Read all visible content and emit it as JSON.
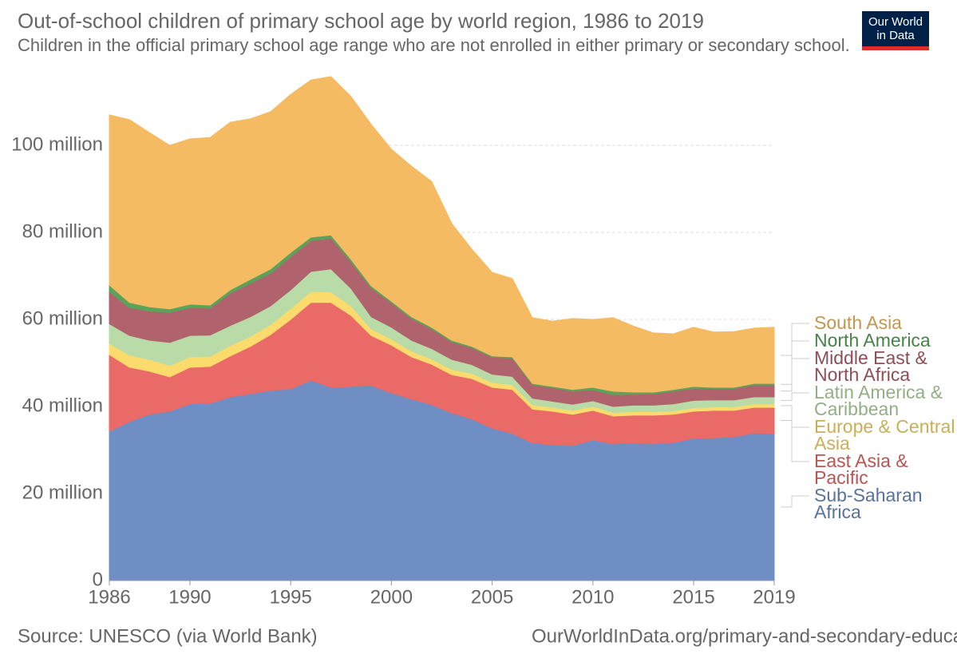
{
  "chart_data": {
    "type": "stacked_area",
    "title": "Out-of-school children of primary school age by world region, 1986 to 2019",
    "subtitle": "Children in the official primary school age range who are not enrolled in either primary or secondary school.",
    "source": "Source: UNESCO (via World Bank)",
    "url": "OurWorldInData.org/primary-and-secondary-education",
    "logo": [
      "Our World",
      "in Data"
    ],
    "x": [
      1986,
      1987,
      1988,
      1989,
      1990,
      1991,
      1992,
      1993,
      1994,
      1995,
      1996,
      1997,
      1998,
      1999,
      2000,
      2001,
      2002,
      2003,
      2004,
      2005,
      2006,
      2007,
      2008,
      2009,
      2010,
      2011,
      2012,
      2013,
      2014,
      2015,
      2016,
      2017,
      2018,
      2019
    ],
    "xlim": [
      1986,
      2019
    ],
    "xticks": [
      1986,
      1990,
      1995,
      2000,
      2005,
      2010,
      2015,
      2019
    ],
    "ylim": [
      0,
      120
    ],
    "yticks": [
      0,
      {
        "value": 20,
        "label": "20 million"
      },
      {
        "value": 40,
        "label": "40 million"
      },
      {
        "value": 60,
        "label": "60 million"
      },
      {
        "value": 80,
        "label": "80 million"
      },
      {
        "value": 100,
        "label": "100 million"
      }
    ],
    "grid": true,
    "series": [
      {
        "name": "Sub-Saharan Africa",
        "color": "#6f8fc4",
        "values": [
          34.3,
          36.5,
          38.2,
          38.9,
          40.6,
          40.7,
          42.2,
          42.9,
          43.7,
          44.0,
          46.0,
          44.4,
          44.6,
          44.8,
          43.1,
          41.7,
          40.4,
          38.5,
          37.1,
          35.0,
          33.8,
          31.6,
          31.2,
          31.0,
          32.3,
          31.4,
          31.7,
          31.4,
          31.7,
          32.7,
          32.8,
          33.0,
          33.9,
          33.8
        ]
      },
      {
        "name": "East Asia & Pacific",
        "color": "#e96a66",
        "values": [
          17.6,
          12.5,
          9.9,
          7.9,
          8.4,
          8.5,
          9.4,
          10.9,
          12.8,
          16.0,
          17.9,
          19.5,
          16.3,
          11.5,
          11.0,
          9.7,
          9.3,
          8.8,
          9.3,
          9.4,
          10.1,
          7.8,
          7.7,
          7.2,
          6.8,
          6.4,
          6.3,
          6.6,
          6.5,
          6.2,
          6.3,
          6.1,
          5.9,
          6.0
        ]
      },
      {
        "name": "Europe & Central Asia",
        "color": "#fbdb6c",
        "values": [
          2.6,
          2.8,
          2.7,
          2.6,
          2.4,
          2.3,
          2.4,
          2.3,
          2.3,
          2.5,
          2.5,
          2.4,
          2.2,
          1.5,
          1.4,
          1.3,
          1.2,
          1.2,
          1.2,
          1.1,
          1.1,
          1.0,
          0.9,
          0.9,
          0.9,
          0.8,
          0.8,
          0.8,
          0.8,
          0.8,
          0.8,
          0.8,
          0.8,
          0.8
        ]
      },
      {
        "name": "Latin America & Caribbean",
        "color": "#b8dba8",
        "values": [
          4.5,
          4.5,
          4.4,
          5.3,
          4.9,
          4.9,
          4.6,
          4.5,
          4.3,
          4.3,
          4.6,
          5.3,
          4.0,
          2.8,
          2.7,
          2.5,
          2.4,
          2.3,
          2.0,
          1.9,
          1.9,
          1.5,
          1.4,
          1.4,
          1.3,
          1.4,
          1.5,
          1.5,
          1.6,
          1.7,
          1.6,
          1.6,
          1.6,
          1.6
        ]
      },
      {
        "name": "Middle East & North Africa",
        "color": "#b0636d",
        "values": [
          7.4,
          6.4,
          6.7,
          6.9,
          6.4,
          6.2,
          7.4,
          7.7,
          7.5,
          7.6,
          7.1,
          7.1,
          6.1,
          6.6,
          5.6,
          5.0,
          4.5,
          4.0,
          3.9,
          3.9,
          4.2,
          3.1,
          3.1,
          3.0,
          2.5,
          2.7,
          2.5,
          2.6,
          2.9,
          2.8,
          2.6,
          2.6,
          2.7,
          2.7
        ]
      },
      {
        "name": "North America",
        "color": "#5aa35a",
        "values": [
          1.5,
          1.2,
          1.0,
          0.8,
          0.8,
          0.7,
          0.8,
          0.9,
          1.0,
          1.0,
          0.8,
          0.7,
          0.6,
          0.5,
          0.4,
          0.4,
          0.4,
          0.4,
          0.3,
          0.3,
          0.3,
          0.3,
          0.3,
          0.4,
          0.6,
          0.8,
          0.5,
          0.4,
          0.4,
          0.4,
          0.3,
          0.3,
          0.4,
          0.4
        ]
      },
      {
        "name": "South Asia",
        "color": "#f5bb62",
        "values": [
          39.1,
          42.0,
          40.0,
          37.6,
          38.0,
          38.5,
          38.5,
          36.9,
          36.1,
          36.3,
          36.1,
          36.4,
          37.4,
          37.1,
          34.9,
          34.6,
          33.5,
          26.8,
          22.3,
          19.2,
          18.0,
          15.1,
          15.0,
          16.3,
          15.6,
          16.9,
          15.2,
          13.6,
          12.8,
          13.6,
          12.7,
          12.8,
          12.7,
          12.9
        ]
      }
    ]
  }
}
